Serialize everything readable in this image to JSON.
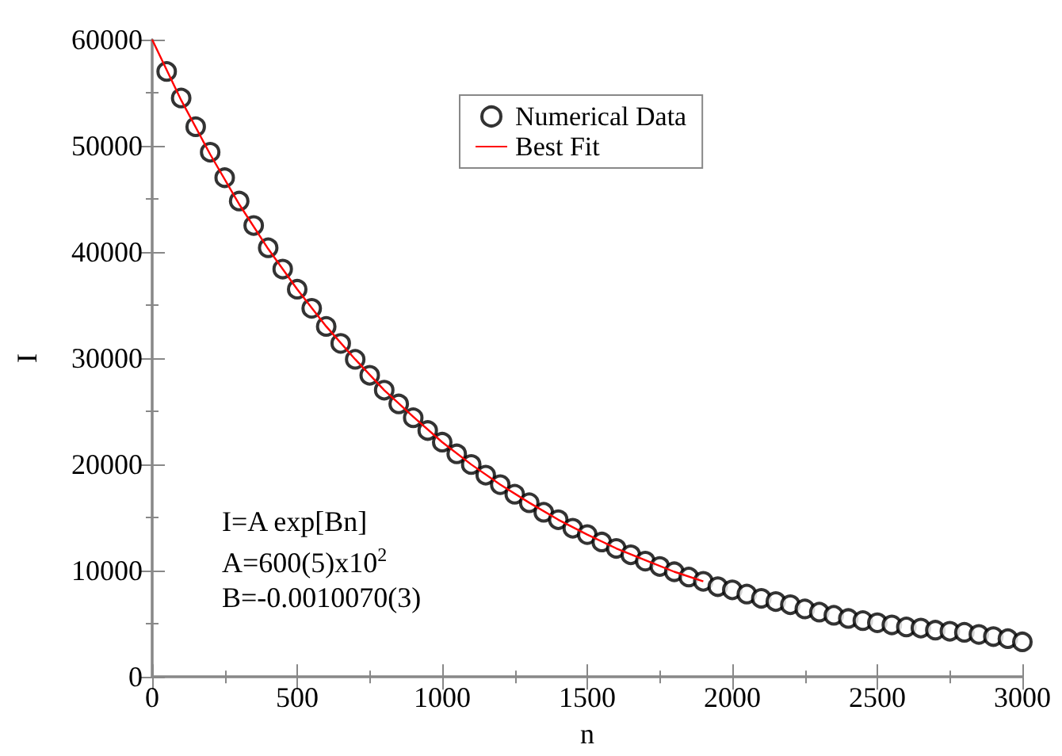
{
  "chart_data": {
    "type": "scatter",
    "xlabel": "n",
    "ylabel": "I",
    "xlim": [
      0,
      3000
    ],
    "xticks": [
      0,
      500,
      1000,
      1500,
      2000,
      2500,
      3000
    ],
    "ylim": [
      0,
      60000
    ],
    "yticks": [
      0,
      10000,
      20000,
      30000,
      40000,
      50000,
      60000
    ],
    "grid": false,
    "legend": "top right",
    "marker": "circle",
    "annotations": [
      "I=A exp[Bn]",
      "A=600(5)x10$^{2}$",
      "B=-0.0010070(3)"
    ],
    "series": [
      {
        "name": "Numerical Data",
        "color": "#000000",
        "x": [
          50,
          100,
          150,
          200,
          250,
          300,
          350,
          400,
          450,
          500,
          550,
          600,
          650,
          700,
          750,
          800,
          850,
          900,
          950,
          1000,
          1050,
          1100,
          1150,
          1200,
          1250,
          1300,
          1350,
          1400,
          1450,
          1500,
          1550,
          1600,
          1650,
          1700,
          1750,
          1800,
          1850,
          1900,
          1950,
          2000,
          2050,
          2100,
          2150,
          2200,
          2250,
          2300,
          2350,
          2400,
          2450,
          2500,
          2550,
          2600,
          2650,
          2700,
          2750,
          2800,
          2850,
          2900,
          2950,
          3000
        ],
        "values": [
          57000,
          54500,
          51800,
          49400,
          47000,
          44800,
          42500,
          40400,
          38400,
          36500,
          34700,
          33000,
          31400,
          29900,
          28400,
          27000,
          25700,
          24400,
          23200,
          22100,
          21000,
          20000,
          19000,
          18100,
          17200,
          16400,
          15500,
          14800,
          14000,
          13400,
          12700,
          12100,
          11500,
          10900,
          10400,
          9900,
          9400,
          9000,
          8500,
          8200,
          7800,
          7400,
          7100,
          6800,
          6400,
          6100,
          5800,
          5500,
          5300,
          5100,
          4900,
          4700,
          4600,
          4400,
          4300,
          4200,
          4000,
          3800,
          3600,
          3300
        ]
      },
      {
        "name": "Best Fit",
        "type": "line",
        "color": "#ff0000",
        "marker": "none",
        "line_style": "solid",
        "x": [
          0,
          100,
          200,
          300,
          400,
          500,
          600,
          700,
          800,
          900,
          1000,
          1100,
          1200,
          1300,
          1400,
          1500,
          1600,
          1700,
          1800,
          1900
        ],
        "values": [
          60000,
          54300,
          49200,
          44500,
          40300,
          36500,
          33000,
          29900,
          27000,
          24500,
          22100,
          20000,
          18100,
          16400,
          14800,
          13400,
          12100,
          11000,
          9900,
          9000
        ]
      }
    ]
  }
}
